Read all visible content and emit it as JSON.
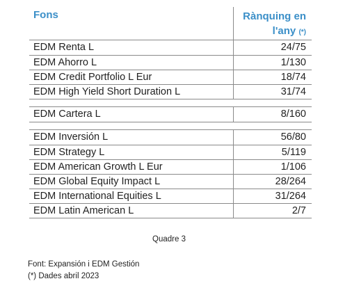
{
  "table": {
    "header": {
      "fund": "Fons",
      "ranking_line1": "Rànquing en",
      "ranking_line2": "l'any",
      "ranking_note": "(*)"
    },
    "groups": [
      [
        {
          "name": "EDM Renta L",
          "rank": "24/75"
        },
        {
          "name": "EDM Ahorro L",
          "rank": "1/130"
        },
        {
          "name": "EDM Credit Portfolio L Eur",
          "rank": "18/74"
        },
        {
          "name": "EDM High Yield Short Duration L",
          "rank": "31/74"
        }
      ],
      [
        {
          "name": "EDM Cartera L",
          "rank": "8/160"
        }
      ],
      [
        {
          "name": "EDM Inversión L",
          "rank": "56/80"
        },
        {
          "name": "EDM Strategy L",
          "rank": "5/119"
        },
        {
          "name": "EDM American Growth L Eur",
          "rank": "1/106"
        },
        {
          "name": "EDM Global Equity Impact L",
          "rank": "28/264"
        },
        {
          "name": "EDM International Equities L",
          "rank": "31/264"
        },
        {
          "name": "EDM Latin American L",
          "rank": "2/7"
        }
      ]
    ]
  },
  "caption": "Quadre 3",
  "footnotes": {
    "source": "Font: Expansión i EDM Gestión",
    "note": "(*) Dades abril 2023"
  },
  "colors": {
    "header_text": "#3b8fc8",
    "rule": "#8a8a8a"
  }
}
